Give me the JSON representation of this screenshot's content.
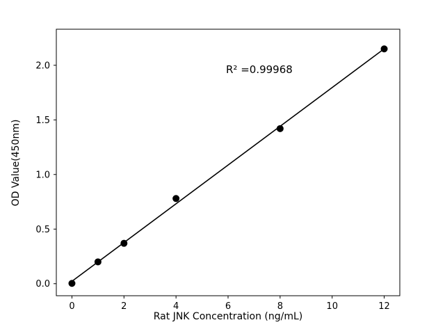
{
  "chart_data": {
    "type": "scatter",
    "title": "",
    "xlabel": "Rat JNK Concentration (ng/mL)",
    "ylabel": "OD Value(450nm)",
    "points": {
      "x": [
        0,
        1,
        2,
        4,
        8,
        12
      ],
      "y": [
        0.003,
        0.2,
        0.37,
        0.78,
        1.42,
        2.15
      ]
    },
    "fit_line": {
      "slope": 0.1774,
      "intercept": 0.022,
      "x_start": 0,
      "x_end": 12,
      "r_squared": 0.99968
    },
    "annotation": "R² =0.99968",
    "x_ticks": {
      "values": [
        0,
        2,
        4,
        6,
        8,
        10,
        12
      ],
      "labels": [
        "0",
        "2",
        "4",
        "6",
        "8",
        "10",
        "12"
      ]
    },
    "y_ticks": {
      "values": [
        0.0,
        0.5,
        1.0,
        1.5,
        2.0
      ],
      "labels": [
        "0.0",
        "0.5",
        "1.0",
        "1.5",
        "2.0"
      ]
    },
    "xlim": [
      -0.6,
      12.6
    ],
    "ylim": [
      -0.11,
      2.33
    ],
    "grid": false,
    "legend": "none",
    "marker_color": "#000000",
    "line_color": "#000000",
    "background": "#ffffff"
  }
}
